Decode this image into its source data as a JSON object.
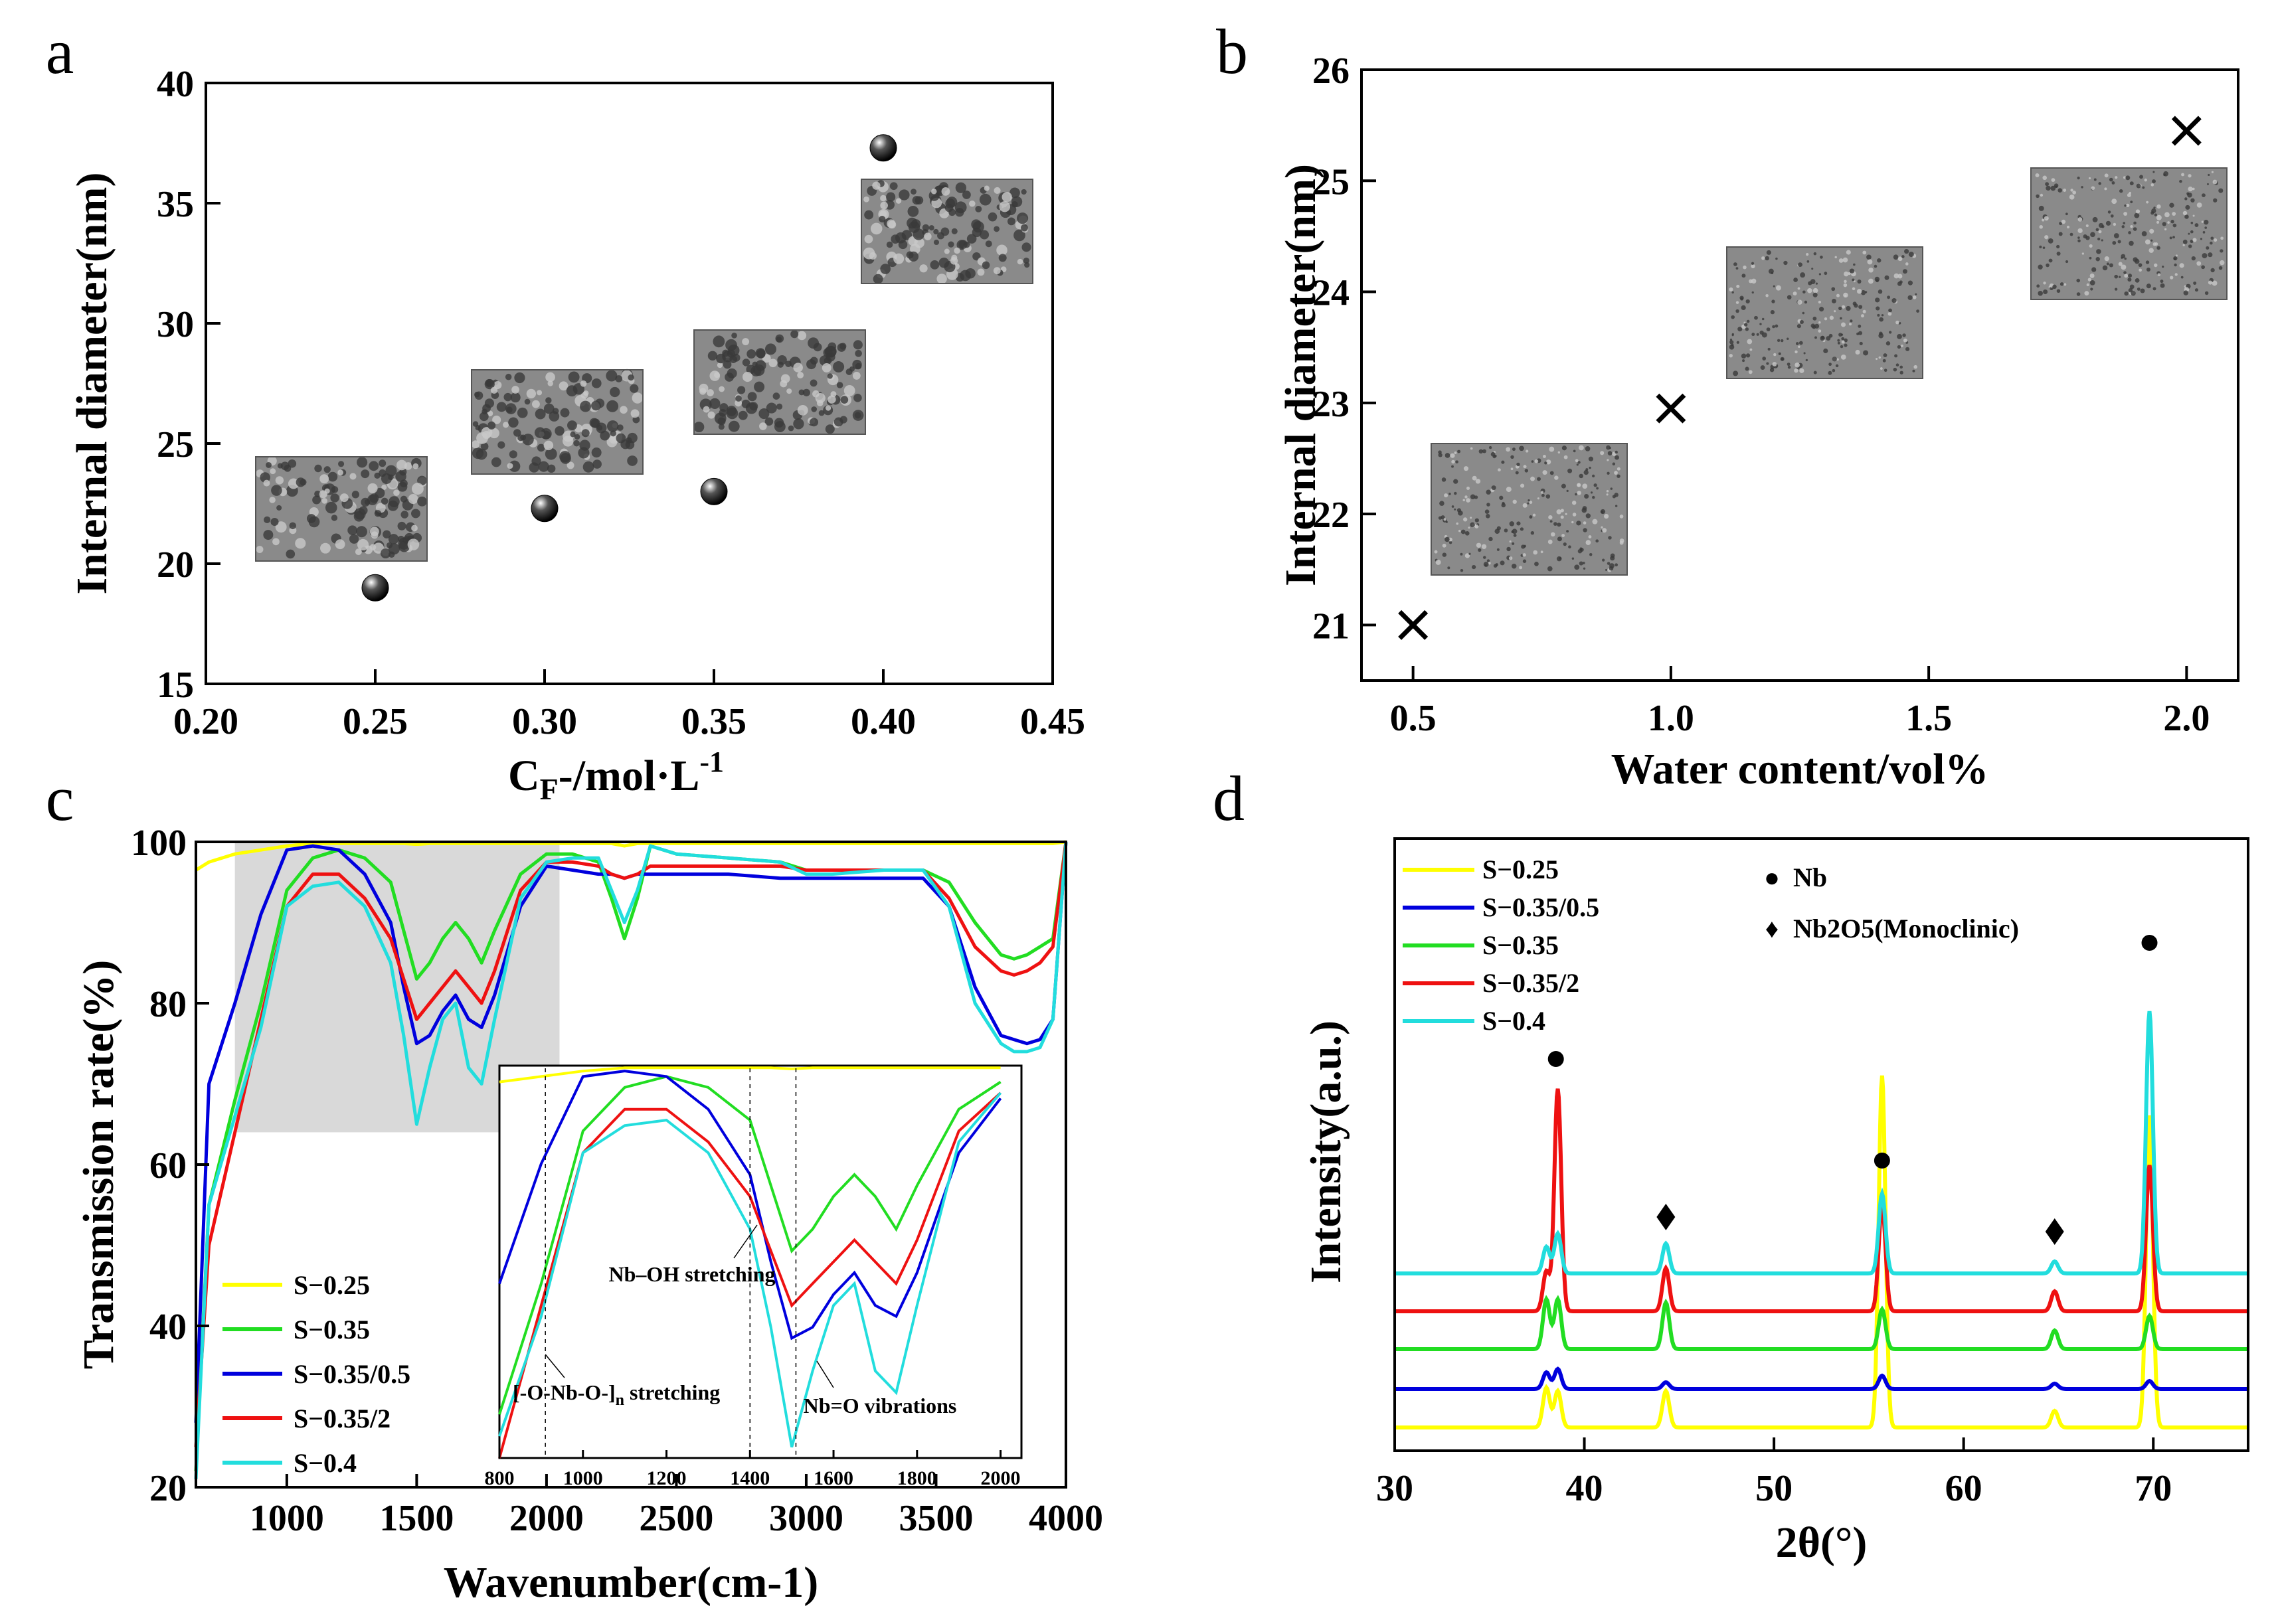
{
  "figure": {
    "panel_letters": [
      "a",
      "b",
      "c",
      "d"
    ]
  },
  "chart_data": [
    {
      "id": "a",
      "type": "scatter",
      "xlabel": "C F-/mol·L-1",
      "xlabel_parts": {
        "base": "C",
        "sub": "F",
        "mid": "-/mol",
        "dot": "·",
        "unit": "L",
        "sup": "-1"
      },
      "ylabel": "Internal diameter(nm)",
      "xlim": [
        0.2,
        0.45
      ],
      "ylim": [
        15,
        40
      ],
      "xticks": [
        "0.20",
        "0.25",
        "0.30",
        "0.35",
        "0.40",
        "0.45"
      ],
      "yticks": [
        "15",
        "20",
        "25",
        "30",
        "35",
        "40"
      ],
      "x": [
        0.25,
        0.3,
        0.35,
        0.4
      ],
      "y": [
        19.0,
        22.3,
        23.0,
        37.3
      ],
      "marker": "sphere",
      "insets": "SEM micrographs of pore morphology"
    },
    {
      "id": "b",
      "type": "scatter",
      "xlabel": "Water content/vol%",
      "ylabel": "Internal diameter(nm)",
      "xlim": [
        0.4,
        2.1
      ],
      "ylim": [
        20.5,
        26
      ],
      "xticks": [
        "0.5",
        "1.0",
        "1.5",
        "2.0"
      ],
      "yticks": [
        "21",
        "22",
        "23",
        "24",
        "25",
        "26"
      ],
      "x": [
        0.5,
        1.0,
        2.0
      ],
      "y": [
        21.0,
        22.95,
        25.45
      ],
      "marker": "x",
      "insets": "SEM micrographs"
    },
    {
      "id": "c",
      "type": "line",
      "xlabel": "Wavenumber(cm-1)",
      "ylabel": "Transmission rate(%)",
      "xlim": [
        650,
        4000
      ],
      "ylim": [
        20,
        100
      ],
      "xticks": [
        "1000",
        "1500",
        "2000",
        "2500",
        "3000",
        "3500",
        "4000"
      ],
      "yticks": [
        "20",
        "40",
        "60",
        "80",
        "100"
      ],
      "x": [
        650,
        700,
        800,
        900,
        1000,
        1100,
        1200,
        1300,
        1400,
        1450,
        1500,
        1550,
        1600,
        1650,
        1700,
        1750,
        1800,
        1900,
        2000,
        2100,
        2200,
        2250,
        2300,
        2350,
        2400,
        2500,
        2700,
        2900,
        3000,
        3100,
        3300,
        3450,
        3550,
        3650,
        3750,
        3800,
        3850,
        3900,
        3950,
        4000
      ],
      "series": [
        {
          "name": "S−0.25",
          "color": "#ffff00",
          "values": [
            96.5,
            97.5,
            98.5,
            99,
            99.5,
            99.8,
            99.8,
            99.8,
            99.8,
            99.8,
            99.7,
            99.8,
            99.8,
            99.8,
            99.8,
            99.8,
            99.8,
            99.8,
            99.8,
            99.8,
            99.8,
            99.8,
            99.5,
            99.8,
            99.8,
            99.8,
            99.8,
            99.8,
            99.8,
            99.8,
            99.8,
            99.8,
            99.8,
            99.8,
            99.8,
            99.8,
            99.8,
            99.8,
            99.8,
            100
          ]
        },
        {
          "name": "S−0.35",
          "color": "#22dd22",
          "values": [
            22,
            55,
            68,
            80,
            94,
            98,
            99,
            98,
            95,
            89,
            83,
            85,
            88,
            90,
            88,
            85,
            89,
            96,
            98.5,
            98.5,
            97.5,
            93,
            88,
            93,
            99.5,
            98.5,
            98,
            97.5,
            96.5,
            96.5,
            96.5,
            96.5,
            95,
            90,
            86,
            85.5,
            86,
            87,
            88,
            100
          ]
        },
        {
          "name": "S−0.35/0.5",
          "color": "#0000dd",
          "values": [
            28,
            70,
            80,
            91,
            99,
            99.5,
            99,
            96,
            90,
            82,
            75,
            76,
            79,
            81,
            78,
            77,
            81,
            92,
            97,
            96.5,
            96,
            96,
            95.5,
            96,
            96,
            96,
            96,
            95.5,
            95.5,
            95.5,
            95.5,
            95.5,
            92,
            82,
            76,
            75.5,
            75,
            75.5,
            78,
            100
          ]
        },
        {
          "name": "S−0.35/2",
          "color": "#ee1111",
          "values": [
            25,
            50,
            64,
            78,
            92,
            96,
            96,
            93,
            88,
            83,
            78,
            80,
            82,
            84,
            82,
            80,
            84,
            94,
            97.5,
            97.5,
            97,
            96,
            95.5,
            96,
            97,
            97,
            97,
            97,
            96.5,
            96.5,
            96.5,
            96.5,
            93,
            87,
            84,
            83.5,
            84,
            85,
            87,
            100
          ]
        },
        {
          "name": "S−0.4",
          "color": "#22dddd",
          "values": [
            21,
            55,
            66,
            77,
            92,
            94.5,
            95,
            92,
            85,
            76,
            65,
            72,
            78,
            80,
            72,
            70,
            78,
            93,
            97.5,
            98,
            98,
            94,
            90,
            94,
            99.5,
            98.5,
            98,
            97.5,
            96,
            96,
            96.5,
            96.5,
            92,
            80,
            75,
            74,
            74,
            74.5,
            78,
            100
          ]
        }
      ],
      "highlight": {
        "x": [
          800,
          2050
        ],
        "y": [
          64,
          100
        ]
      },
      "inset": {
        "xlim": [
          800,
          2050
        ],
        "ylim": [
          64,
          100
        ],
        "xticks": [
          "800",
          "1000",
          "1200",
          "1400",
          "1600",
          "1800",
          "2000"
        ],
        "annotations": [
          {
            "label_pre": "[-O-Nb-O-]",
            "label_sub": "n",
            "label_post": " stretching",
            "x": 910
          },
          {
            "label": "Nb–OH stretching",
            "x": 1400
          },
          {
            "label": "Nb=O vibrations",
            "x": 1510
          }
        ]
      }
    },
    {
      "id": "d",
      "type": "line",
      "xlabel": "2θ(°)",
      "ylabel": "Intensity(a.u.)",
      "xlim": [
        30,
        75
      ],
      "xticks": [
        "30",
        "40",
        "50",
        "60",
        "70"
      ],
      "legend_title_items": [
        {
          "symbol": "●",
          "label": "Nb"
        },
        {
          "symbol": "♦",
          "label": "Nb2O5(Monoclinic)"
        }
      ],
      "peaks_nb": [
        38.5,
        55.7,
        69.8
      ],
      "peaks_nb2o5": [
        44.3,
        64.8
      ],
      "series": [
        {
          "name": "S−0.25",
          "color": "#ffff00",
          "offset": 0,
          "peak_heights": {
            "38.0": 60,
            "38.6": 55,
            "44.3": 55,
            "55.7": 530,
            "64.8": 25,
            "69.8": 470
          }
        },
        {
          "name": "S−0.35/0.5",
          "color": "#0000dd",
          "offset": 1,
          "peak_heights": {
            "38.0": 25,
            "38.6": 30,
            "44.3": 10,
            "55.7": 20,
            "64.8": 8,
            "69.8": 12
          }
        },
        {
          "name": "S−0.35",
          "color": "#22dd22",
          "offset": 2,
          "peak_heights": {
            "38.0": 75,
            "38.6": 75,
            "44.3": 70,
            "55.7": 60,
            "64.8": 28,
            "69.8": 50
          }
        },
        {
          "name": "S−0.35/2",
          "color": "#ee1111",
          "offset": 3,
          "peak_heights": {
            "38.0": 60,
            "38.6": 335,
            "44.3": 65,
            "55.7": 160,
            "64.8": 30,
            "69.8": 220
          }
        },
        {
          "name": "S−0.4",
          "color": "#22dddd",
          "offset": 4,
          "peak_heights": {
            "38.0": 40,
            "38.6": 60,
            "44.3": 45,
            "55.7": 120,
            "64.8": 18,
            "69.8": 395
          }
        }
      ]
    }
  ]
}
